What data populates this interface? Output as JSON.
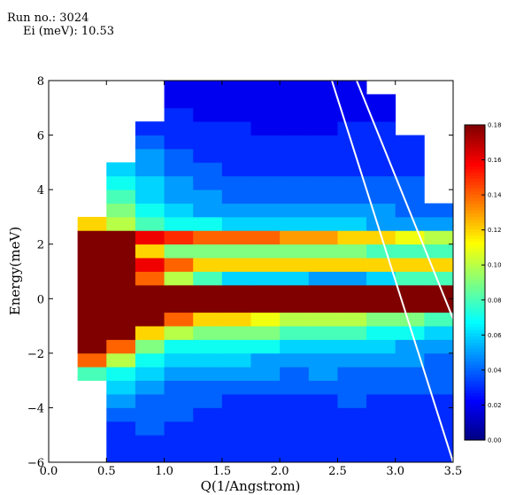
{
  "chart_data": {
    "type": "heatmap",
    "annotations": [
      "Run no.: 3024",
      "Ei (meV): 10.53"
    ],
    "xlabel": "Q(1/Angstrom)",
    "ylabel": "Energy(meV)",
    "colormap": "jet",
    "xbins": [
      0,
      0.25,
      0.5,
      0.75,
      1,
      1.25,
      1.5,
      1.75,
      2,
      2.25,
      2.5,
      2.75,
      3,
      3.25,
      3.5
    ],
    "ybins": [
      -6,
      -5.5,
      -5,
      -4.5,
      -4,
      -3.5,
      -3,
      -2.5,
      -2,
      -1.5,
      -1,
      -0.5,
      0,
      0.5,
      1,
      1.5,
      2,
      2.5,
      3,
      3.5,
      4,
      4.5,
      5,
      5.5,
      6,
      6.5,
      7,
      7.5,
      8
    ],
    "z": [
      [
        null,
        null,
        0.03,
        0.03,
        0.03,
        0.03,
        0.03,
        0.03,
        0.03,
        0.03,
        0.03,
        0.03,
        0.03,
        0.03
      ],
      [
        null,
        null,
        0.03,
        0.03,
        0.03,
        0.03,
        0.03,
        0.03,
        0.03,
        0.03,
        0.03,
        0.03,
        0.03,
        0.03
      ],
      [
        null,
        null,
        0.03,
        0.04,
        0.03,
        0.03,
        0.03,
        0.03,
        0.03,
        0.03,
        0.03,
        0.03,
        0.03,
        0.03
      ],
      [
        null,
        null,
        0.04,
        0.04,
        0.04,
        0.03,
        0.03,
        0.03,
        0.03,
        0.03,
        0.03,
        0.03,
        0.03,
        0.03
      ],
      [
        null,
        null,
        0.05,
        0.04,
        0.04,
        0.04,
        0.03,
        0.03,
        0.03,
        0.03,
        0.04,
        0.03,
        0.03,
        0.03
      ],
      [
        null,
        null,
        0.06,
        0.05,
        0.04,
        0.04,
        0.04,
        0.04,
        0.04,
        0.04,
        0.04,
        0.04,
        0.04,
        0.04
      ],
      [
        null,
        0.08,
        0.07,
        0.06,
        0.05,
        0.05,
        0.05,
        0.05,
        0.04,
        0.05,
        0.04,
        0.04,
        0.04,
        0.04
      ],
      [
        null,
        0.14,
        0.1,
        0.07,
        0.06,
        0.06,
        0.06,
        0.05,
        0.05,
        0.05,
        0.05,
        0.05,
        0.05,
        0.04
      ],
      [
        null,
        0.18,
        0.14,
        0.09,
        0.07,
        0.07,
        0.07,
        0.07,
        0.06,
        0.06,
        0.06,
        0.06,
        0.05,
        0.05
      ],
      [
        null,
        0.18,
        0.18,
        0.12,
        0.1,
        0.09,
        0.09,
        0.09,
        0.08,
        0.08,
        0.08,
        0.07,
        0.07,
        0.06
      ],
      [
        null,
        0.18,
        0.18,
        0.18,
        0.14,
        0.12,
        0.12,
        0.11,
        0.1,
        0.1,
        0.1,
        0.09,
        0.09,
        0.08
      ],
      [
        null,
        0.18,
        0.18,
        0.18,
        0.18,
        0.18,
        0.18,
        0.18,
        0.18,
        0.18,
        0.18,
        0.18,
        0.18,
        0.18
      ],
      [
        null,
        0.18,
        0.18,
        0.18,
        0.18,
        0.18,
        0.18,
        0.18,
        0.18,
        0.18,
        0.18,
        0.18,
        0.18,
        0.18
      ],
      [
        null,
        0.18,
        0.18,
        0.14,
        0.1,
        0.08,
        0.06,
        0.06,
        0.06,
        0.05,
        0.05,
        0.06,
        0.08,
        0.08
      ],
      [
        null,
        0.18,
        0.18,
        0.16,
        0.14,
        0.12,
        0.12,
        0.12,
        0.12,
        0.12,
        0.12,
        0.12,
        0.12,
        0.12
      ],
      [
        null,
        0.18,
        0.18,
        0.12,
        0.09,
        0.09,
        0.09,
        0.09,
        0.09,
        0.09,
        0.09,
        0.08,
        0.08,
        0.08
      ],
      [
        null,
        0.18,
        0.18,
        0.16,
        0.15,
        0.14,
        0.14,
        0.14,
        0.13,
        0.13,
        0.12,
        0.12,
        0.11,
        0.1
      ],
      [
        null,
        0.12,
        0.1,
        0.08,
        0.07,
        0.07,
        0.06,
        0.06,
        0.06,
        0.06,
        0.06,
        0.05,
        0.05,
        0.05
      ],
      [
        null,
        null,
        0.09,
        0.07,
        0.06,
        0.05,
        0.05,
        0.05,
        0.05,
        0.05,
        0.05,
        0.05,
        0.04,
        0.04
      ],
      [
        null,
        null,
        0.08,
        0.06,
        0.05,
        0.05,
        0.04,
        0.04,
        0.04,
        0.04,
        0.04,
        0.04,
        0.04,
        null
      ],
      [
        null,
        null,
        0.07,
        0.06,
        0.05,
        0.04,
        0.04,
        0.04,
        0.04,
        0.04,
        0.04,
        0.04,
        0.04,
        null
      ],
      [
        null,
        null,
        0.06,
        0.05,
        0.04,
        0.04,
        0.03,
        0.03,
        0.03,
        0.03,
        0.03,
        0.03,
        0.03,
        null
      ],
      [
        null,
        null,
        null,
        0.05,
        0.04,
        0.03,
        0.03,
        0.03,
        0.03,
        0.03,
        0.03,
        0.03,
        0.03,
        null
      ],
      [
        null,
        null,
        null,
        0.04,
        0.03,
        0.03,
        0.03,
        0.03,
        0.03,
        0.03,
        0.03,
        0.03,
        0.03,
        null
      ],
      [
        null,
        null,
        null,
        0.03,
        0.03,
        0.03,
        0.03,
        0.02,
        0.02,
        0.02,
        0.03,
        0.03,
        null,
        null
      ],
      [
        null,
        null,
        null,
        null,
        0.03,
        0.02,
        0.02,
        0.02,
        0.02,
        0.02,
        0.02,
        0.02,
        null,
        null
      ],
      [
        null,
        null,
        null,
        null,
        0.02,
        0.02,
        0.02,
        0.02,
        0.02,
        0.02,
        0.02,
        0.02,
        null,
        null
      ],
      [
        null,
        null,
        null,
        null,
        0.02,
        0.02,
        0.02,
        0.02,
        0.02,
        0.02,
        0.02,
        null,
        null,
        null
      ]
    ],
    "xlim": [
      0,
      3.5
    ],
    "xticks": [
      {
        "value": 0,
        "label": "0.0"
      },
      {
        "value": 0.5,
        "label": "0.5"
      },
      {
        "value": 1,
        "label": "1.0"
      },
      {
        "value": 1.5,
        "label": "1.5"
      },
      {
        "value": 2,
        "label": "2.0"
      },
      {
        "value": 2.5,
        "label": "2.5"
      },
      {
        "value": 3,
        "label": "3.0"
      },
      {
        "value": 3.5,
        "label": "3.5"
      }
    ],
    "ylim": [
      -6,
      8
    ],
    "yticks": [
      {
        "value": -6,
        "label": "−6"
      },
      {
        "value": -4,
        "label": "−4"
      },
      {
        "value": -2,
        "label": "−2"
      },
      0,
      2,
      4,
      6,
      8
    ],
    "clim": [
      0,
      0.18
    ],
    "cticks": [
      {
        "value": 0,
        "label": "0.00"
      },
      {
        "value": 0.02,
        "label": "0.02"
      },
      {
        "value": 0.04,
        "label": "0.04"
      },
      {
        "value": 0.06,
        "label": "0.06"
      },
      {
        "value": 0.08,
        "label": "0.08"
      },
      {
        "value": 0.1,
        "label": "0.10"
      },
      {
        "value": 0.12,
        "label": "0.12"
      },
      {
        "value": 0.14,
        "label": "0.14"
      },
      {
        "value": 0.16,
        "label": "0.16"
      },
      {
        "value": 0.18,
        "label": "0.18"
      }
    ]
  }
}
